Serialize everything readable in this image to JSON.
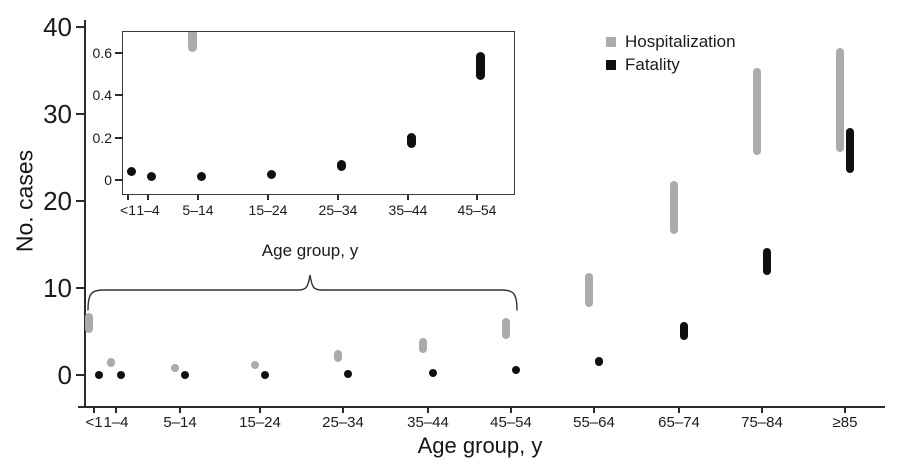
{
  "figure": {
    "background": "#ffffff",
    "axis_color": "#2b2b2b",
    "text_color": "#1b1b1b"
  },
  "chart_data": {
    "type": "interval-range",
    "xlabel": "Age group, y",
    "ylabel": "No. cases",
    "categories": [
      "<1",
      "1–4",
      "5–14",
      "15–24",
      "25–34",
      "35–44",
      "45–54",
      "55–64",
      "65–74",
      "75–84",
      "≥85"
    ],
    "ylim": [
      0,
      41
    ],
    "yticks": [
      0,
      10,
      20,
      30,
      40
    ],
    "ytick_labels": [
      "0",
      "10",
      "20",
      "30",
      "40"
    ],
    "grid": false,
    "legend_position": "top-right",
    "series": [
      {
        "name": "Hospitalization",
        "color": "#ababab",
        "ranges": [
          [
            4.8,
            7.1
          ],
          [
            0.9,
            2.0
          ],
          [
            0.6,
            1.1
          ],
          [
            0.8,
            1.4
          ],
          [
            1.5,
            2.9
          ],
          [
            2.5,
            4.3
          ],
          [
            4.1,
            6.6
          ],
          [
            7.8,
            11.7
          ],
          [
            16.2,
            22.3
          ],
          [
            25.3,
            35.3
          ],
          [
            25.6,
            37.6
          ]
        ]
      },
      {
        "name": "Fatality",
        "color": "#0f0f0f",
        "ranges": [
          [
            0.02,
            0.06
          ],
          [
            0.005,
            0.025
          ],
          [
            0.005,
            0.025
          ],
          [
            0.01,
            0.035
          ],
          [
            0.04,
            0.09
          ],
          [
            0.15,
            0.22
          ],
          [
            0.47,
            0.6
          ],
          [
            1.0,
            2.1
          ],
          [
            4.0,
            6.1
          ],
          [
            11.5,
            14.6
          ],
          [
            23.2,
            28.4
          ]
        ]
      }
    ],
    "inset": {
      "xlabel": "Age group, y",
      "categories": [
        "<1",
        "1–4",
        "5–14",
        "15–24",
        "25–34",
        "35–44",
        "45–54"
      ],
      "ylim": [
        0,
        0.7
      ],
      "yticks": [
        0,
        0.2,
        0.4,
        0.6
      ],
      "ytick_labels": [
        "0",
        "0.2",
        "0.4",
        "0.6"
      ]
    }
  }
}
